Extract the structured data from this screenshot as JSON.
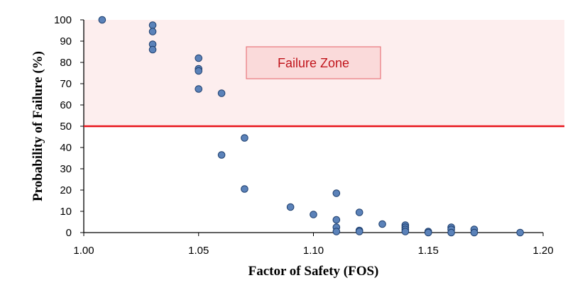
{
  "chart_data": {
    "type": "scatter",
    "title": "",
    "xlabel": "Factor of Safety (FOS)",
    "ylabel": "Probability of Failure (%)",
    "xlim": [
      1.0,
      1.2
    ],
    "ylim": [
      0,
      100
    ],
    "xticks": [
      "1.00",
      "1.05",
      "1.10",
      "1.15",
      "1.20"
    ],
    "yticks": [
      "0",
      "10",
      "20",
      "30",
      "40",
      "50",
      "60",
      "70",
      "80",
      "90",
      "100"
    ],
    "threshold": {
      "value": 50,
      "color": "#e8141b"
    },
    "zone": {
      "label": "Failure Zone",
      "from": 50,
      "to": 100,
      "fill": "#fdeeee"
    },
    "marker_color": "#5b82b9",
    "marker_edge": "#1e3f6e",
    "points": [
      [
        1.008,
        100
      ],
      [
        1.03,
        97.5
      ],
      [
        1.03,
        94.5
      ],
      [
        1.03,
        88.5
      ],
      [
        1.03,
        86
      ],
      [
        1.05,
        82
      ],
      [
        1.05,
        77
      ],
      [
        1.05,
        76
      ],
      [
        1.05,
        67.5
      ],
      [
        1.06,
        65.5
      ],
      [
        1.06,
        36.5
      ],
      [
        1.07,
        44.5
      ],
      [
        1.07,
        20.5
      ],
      [
        1.09,
        12
      ],
      [
        1.1,
        8.5
      ],
      [
        1.11,
        18.5
      ],
      [
        1.11,
        6
      ],
      [
        1.11,
        2.5
      ],
      [
        1.11,
        0.5
      ],
      [
        1.12,
        9.5
      ],
      [
        1.12,
        1
      ],
      [
        1.12,
        0.5
      ],
      [
        1.13,
        4
      ],
      [
        1.14,
        3.5
      ],
      [
        1.14,
        2.5
      ],
      [
        1.14,
        1.5
      ],
      [
        1.14,
        0.5
      ],
      [
        1.15,
        0.5
      ],
      [
        1.15,
        0
      ],
      [
        1.16,
        2.5
      ],
      [
        1.16,
        1.5
      ],
      [
        1.16,
        0
      ],
      [
        1.17,
        1.5
      ],
      [
        1.17,
        0
      ],
      [
        1.19,
        0
      ]
    ]
  }
}
